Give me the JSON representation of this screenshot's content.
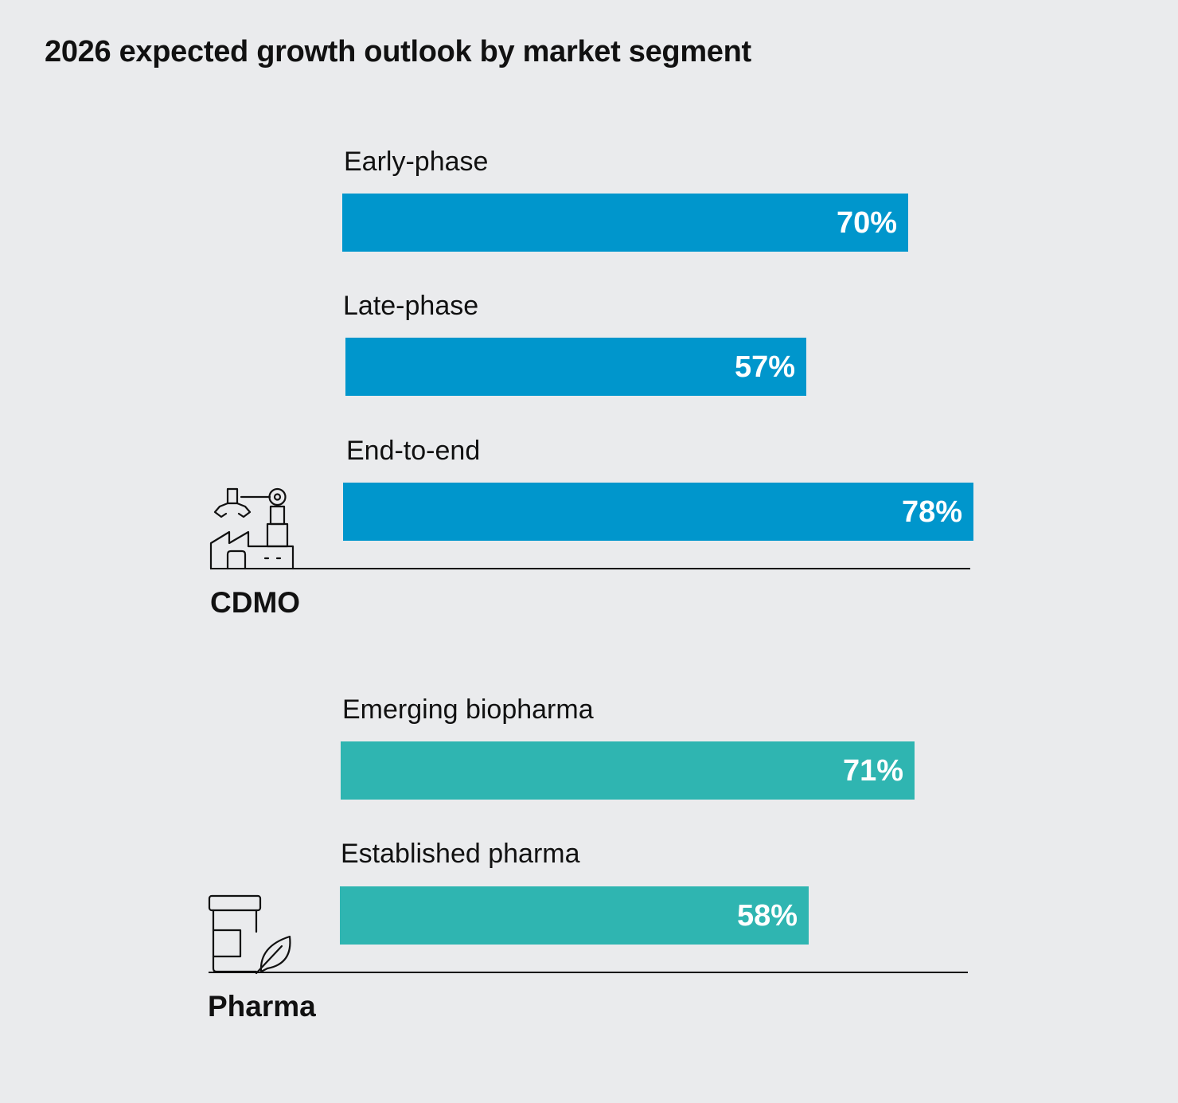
{
  "title": "2026 expected growth outlook by market segment",
  "colors": {
    "background": "#eaebed",
    "cdmo_bar": "#0096cc",
    "pharma_bar": "#2fb5b1",
    "text": "#111111",
    "bar_text": "#ffffff"
  },
  "groups": [
    {
      "name": "CDMO",
      "icon": "factory-robot-arm-icon"
    },
    {
      "name": "Pharma",
      "icon": "medicine-jar-leaf-icon"
    }
  ],
  "chart_data": {
    "type": "bar",
    "orientation": "horizontal",
    "title": "2026 expected growth outlook by market segment",
    "xlabel": "",
    "ylabel": "",
    "xlim": [
      0,
      100
    ],
    "unit": "%",
    "grid": false,
    "legend": "none",
    "categories": [
      "Early-phase",
      "Late-phase",
      "End-to-end",
      "Emerging biopharma",
      "Established pharma"
    ],
    "values": [
      70,
      57,
      78,
      71,
      58
    ],
    "value_labels": [
      "70%",
      "57%",
      "78%",
      "71%",
      "58%"
    ],
    "groups": [
      "CDMO",
      "CDMO",
      "CDMO",
      "Pharma",
      "Pharma"
    ]
  }
}
